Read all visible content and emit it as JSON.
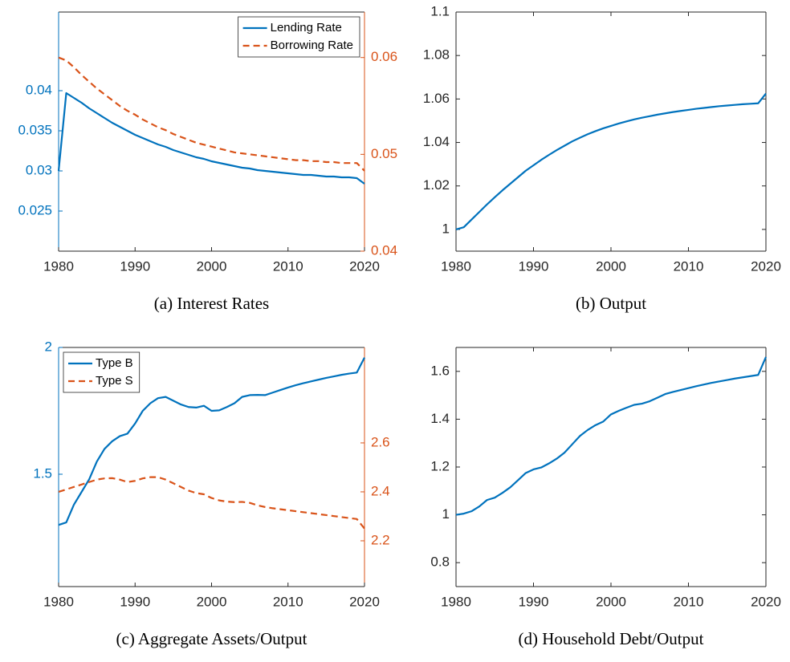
{
  "chart_data": [
    {
      "type": "line",
      "caption": "(a) Interest Rates",
      "x": [
        1980,
        1981,
        1982,
        1983,
        1984,
        1985,
        1986,
        1987,
        1988,
        1989,
        1990,
        1991,
        1992,
        1993,
        1994,
        1995,
        1996,
        1997,
        1998,
        1999,
        2000,
        2001,
        2002,
        2003,
        2004,
        2005,
        2006,
        2007,
        2008,
        2009,
        2010,
        2011,
        2012,
        2013,
        2014,
        2015,
        2016,
        2017,
        2018,
        2019,
        2020
      ],
      "xlim": [
        1980,
        2020
      ],
      "xticks": [
        1980,
        1990,
        2000,
        2010,
        2020
      ],
      "ylim": [
        0.02,
        0.0498
      ],
      "yticks": [
        0.025,
        0.03,
        0.035,
        0.04
      ],
      "y2lim": [
        0.04,
        0.0647
      ],
      "y2ticks": [
        0.04,
        0.05,
        0.06
      ],
      "legend": "northeast",
      "series": [
        {
          "name": "Lending Rate",
          "color": "#0072BD",
          "linestyle": "-",
          "axis": "y",
          "values": [
            0.03,
            0.0397,
            0.0391,
            0.0385,
            0.0378,
            0.0372,
            0.0366,
            0.036,
            0.0355,
            0.035,
            0.0345,
            0.0341,
            0.0337,
            0.0333,
            0.033,
            0.0326,
            0.0323,
            0.032,
            0.0317,
            0.0315,
            0.0312,
            0.031,
            0.0308,
            0.0306,
            0.0304,
            0.0303,
            0.0301,
            0.03,
            0.0299,
            0.0298,
            0.0297,
            0.0296,
            0.0295,
            0.0295,
            0.0294,
            0.0293,
            0.0293,
            0.0292,
            0.0292,
            0.0291,
            0.0284
          ]
        },
        {
          "name": "Borrowing Rate",
          "color": "#D95319",
          "linestyle": "--",
          "axis": "y2",
          "values": [
            0.06,
            0.0597,
            0.059,
            0.0582,
            0.0575,
            0.0568,
            0.0562,
            0.0556,
            0.055,
            0.0545,
            0.0541,
            0.0536,
            0.0532,
            0.0528,
            0.0525,
            0.0521,
            0.0518,
            0.0515,
            0.0512,
            0.051,
            0.0508,
            0.0506,
            0.0504,
            0.0502,
            0.0501,
            0.05,
            0.0499,
            0.0498,
            0.0497,
            0.0496,
            0.0495,
            0.0494,
            0.0494,
            0.0493,
            0.0493,
            0.0492,
            0.0492,
            0.0491,
            0.0491,
            0.0491,
            0.0483
          ]
        }
      ]
    },
    {
      "type": "line",
      "caption": "(b) Output",
      "x": [
        1980,
        1981,
        1982,
        1983,
        1984,
        1985,
        1986,
        1987,
        1988,
        1989,
        1990,
        1991,
        1992,
        1993,
        1994,
        1995,
        1996,
        1997,
        1998,
        1999,
        2000,
        2001,
        2002,
        2003,
        2004,
        2005,
        2006,
        2007,
        2008,
        2009,
        2010,
        2011,
        2012,
        2013,
        2014,
        2015,
        2016,
        2017,
        2018,
        2019,
        2020
      ],
      "xlim": [
        1980,
        2020
      ],
      "xticks": [
        1980,
        1990,
        2000,
        2010,
        2020
      ],
      "ylim": [
        0.99,
        1.1
      ],
      "yticks": [
        1,
        1.02,
        1.04,
        1.06,
        1.08,
        1.1
      ],
      "series": [
        {
          "color": "#0072BD",
          "linestyle": "-",
          "axis": "y",
          "values": [
            1.0,
            1.001,
            1.0045,
            1.008,
            1.0115,
            1.0148,
            1.018,
            1.021,
            1.024,
            1.027,
            1.0295,
            1.032,
            1.0343,
            1.0365,
            1.0385,
            1.0405,
            1.0422,
            1.0438,
            1.0452,
            1.0465,
            1.0476,
            1.0487,
            1.0497,
            1.0506,
            1.0514,
            1.0521,
            1.0528,
            1.0534,
            1.054,
            1.0545,
            1.055,
            1.0555,
            1.0559,
            1.0563,
            1.0567,
            1.057,
            1.0573,
            1.0576,
            1.0578,
            1.058,
            1.0625
          ]
        }
      ]
    },
    {
      "type": "line",
      "caption": "(c) Aggregate Assets/Output",
      "x": [
        1980,
        1981,
        1982,
        1983,
        1984,
        1985,
        1986,
        1987,
        1988,
        1989,
        1990,
        1991,
        1992,
        1993,
        1994,
        1995,
        1996,
        1997,
        1998,
        1999,
        2000,
        2001,
        2002,
        2003,
        2004,
        2005,
        2006,
        2007,
        2008,
        2009,
        2010,
        2011,
        2012,
        2013,
        2014,
        2015,
        2016,
        2017,
        2018,
        2019,
        2020
      ],
      "xlim": [
        1980,
        2020
      ],
      "xticks": [
        1980,
        1990,
        2000,
        2010,
        2020
      ],
      "ylim": [
        1.057,
        2
      ],
      "yticks": [
        1.5,
        2
      ],
      "y2lim": [
        2.013,
        2.99
      ],
      "y2ticks": [
        2.2,
        2.4,
        2.6
      ],
      "legend": "northwest",
      "series": [
        {
          "name": "Type B",
          "color": "#0072BD",
          "linestyle": "-",
          "axis": "y",
          "values": [
            1.3,
            1.31,
            1.38,
            1.43,
            1.48,
            1.55,
            1.6,
            1.63,
            1.65,
            1.66,
            1.7,
            1.75,
            1.78,
            1.8,
            1.805,
            1.79,
            1.775,
            1.765,
            1.763,
            1.77,
            1.75,
            1.752,
            1.765,
            1.78,
            1.805,
            1.812,
            1.813,
            1.812,
            1.822,
            1.832,
            1.842,
            1.851,
            1.859,
            1.866,
            1.873,
            1.88,
            1.886,
            1.892,
            1.897,
            1.901,
            1.96
          ]
        },
        {
          "name": "Type S",
          "color": "#D95319",
          "linestyle": "--",
          "axis": "y2",
          "values": [
            2.4,
            2.41,
            2.42,
            2.43,
            2.44,
            2.45,
            2.455,
            2.456,
            2.45,
            2.44,
            2.445,
            2.455,
            2.46,
            2.46,
            2.45,
            2.435,
            2.42,
            2.405,
            2.395,
            2.39,
            2.375,
            2.365,
            2.36,
            2.358,
            2.359,
            2.355,
            2.345,
            2.338,
            2.333,
            2.329,
            2.325,
            2.321,
            2.317,
            2.313,
            2.309,
            2.305,
            2.301,
            2.297,
            2.293,
            2.289,
            2.25
          ]
        }
      ]
    },
    {
      "type": "line",
      "caption": "(d) Household Debt/Output",
      "x": [
        1980,
        1981,
        1982,
        1983,
        1984,
        1985,
        1986,
        1987,
        1988,
        1989,
        1990,
        1991,
        1992,
        1993,
        1994,
        1995,
        1996,
        1997,
        1998,
        1999,
        2000,
        2001,
        2002,
        2003,
        2004,
        2005,
        2006,
        2007,
        2008,
        2009,
        2010,
        2011,
        2012,
        2013,
        2014,
        2015,
        2016,
        2017,
        2018,
        2019,
        2020
      ],
      "xlim": [
        1980,
        2020
      ],
      "xticks": [
        1980,
        1990,
        2000,
        2010,
        2020
      ],
      "ylim": [
        0.7,
        1.7
      ],
      "yticks": [
        0.8,
        1,
        1.2,
        1.4,
        1.6
      ],
      "series": [
        {
          "color": "#0072BD",
          "linestyle": "-",
          "axis": "y",
          "values": [
            1.0,
            1.005,
            1.015,
            1.035,
            1.062,
            1.072,
            1.092,
            1.115,
            1.145,
            1.175,
            1.19,
            1.198,
            1.215,
            1.235,
            1.26,
            1.295,
            1.33,
            1.355,
            1.375,
            1.39,
            1.42,
            1.435,
            1.448,
            1.46,
            1.465,
            1.475,
            1.49,
            1.505,
            1.514,
            1.522,
            1.53,
            1.538,
            1.545,
            1.552,
            1.558,
            1.564,
            1.57,
            1.575,
            1.58,
            1.585,
            1.66
          ]
        }
      ]
    }
  ]
}
